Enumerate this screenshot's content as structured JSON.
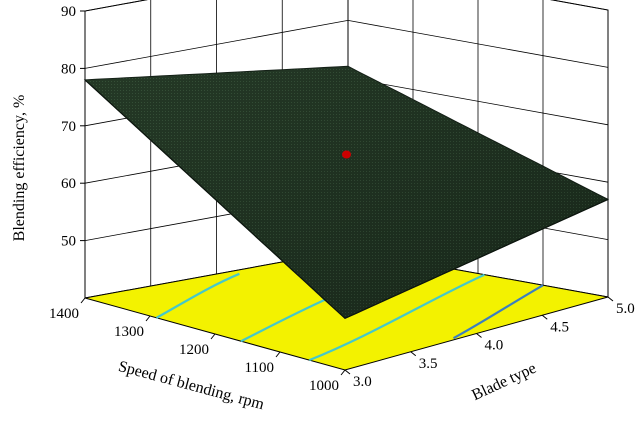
{
  "chart_data": {
    "type": "surface3d",
    "title": "",
    "zlabel": "Blending efficiency, %",
    "xlabel": "Speed of blending, rpm",
    "ylabel": "Blade type",
    "zlim": [
      40,
      90
    ],
    "z_ticks": [
      "50",
      "60",
      "70",
      "80",
      "90"
    ],
    "x_ticks": [
      "1000",
      "1100",
      "1200",
      "1300",
      "1400"
    ],
    "y_ticks": [
      "3.0",
      "3.5",
      "4.0",
      "4.5",
      "5.0"
    ],
    "grid": true,
    "colors": {
      "surface": "#1e2f1f",
      "surface_dark": "#0f1a12",
      "floor": "#f3f200",
      "contour": "#46c8c8",
      "contour_alt": "#3b7fc0",
      "design_point": "#cc0000",
      "grid": "#000000"
    },
    "surface_corners": [
      {
        "speed": 1400,
        "blade": 3.0,
        "efficiency": 78
      },
      {
        "speed": 1400,
        "blade": 5.0,
        "efficiency": 72
      },
      {
        "speed": 1000,
        "blade": 5.0,
        "efficiency": 57
      },
      {
        "speed": 1000,
        "blade": 3.0,
        "efficiency": 49
      }
    ],
    "design_point": {
      "speed": 1200,
      "blade": 4.0,
      "efficiency": 66
    }
  }
}
